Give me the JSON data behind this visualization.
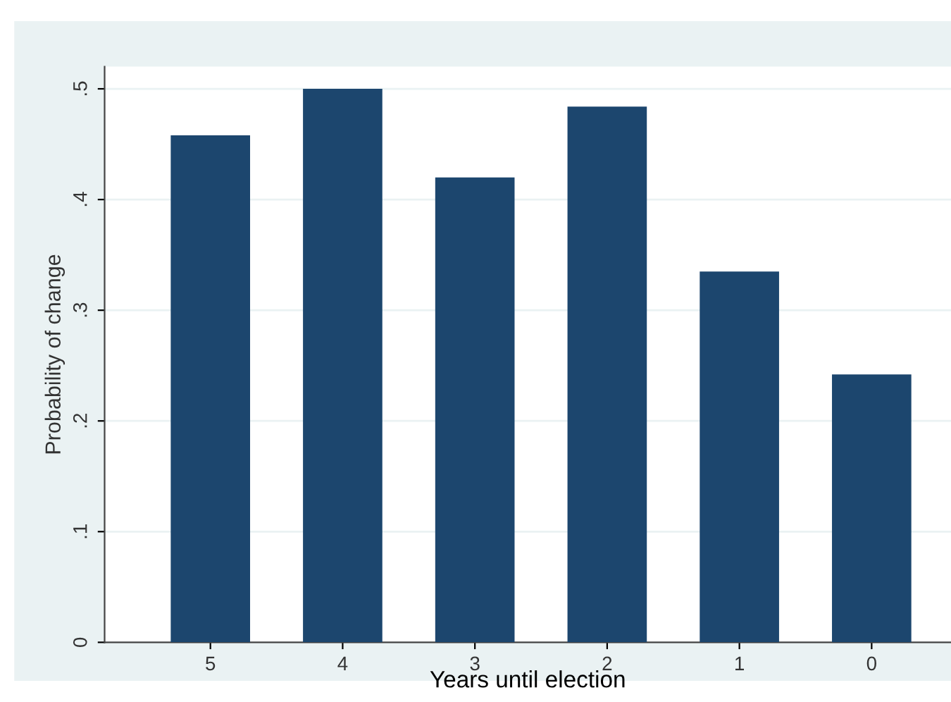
{
  "chart_data": {
    "type": "bar",
    "xlabel": "Years until election",
    "ylabel": "Probability of change",
    "categories": [
      "5",
      "4",
      "3",
      "2",
      "1",
      "0"
    ],
    "values": [
      0.458,
      0.5,
      0.42,
      0.484,
      0.335,
      0.242
    ],
    "color": "#1c466e",
    "ylim": [
      0,
      0.52
    ],
    "yticks": [
      {
        "value": 0,
        "label": "0"
      },
      {
        "value": 0.1,
        "label": ".1"
      },
      {
        "value": 0.2,
        "label": ".2"
      },
      {
        "value": 0.3,
        "label": ".3"
      },
      {
        "value": 0.4,
        "label": ".4"
      },
      {
        "value": 0.5,
        "label": ".5"
      }
    ],
    "grid": "y"
  }
}
